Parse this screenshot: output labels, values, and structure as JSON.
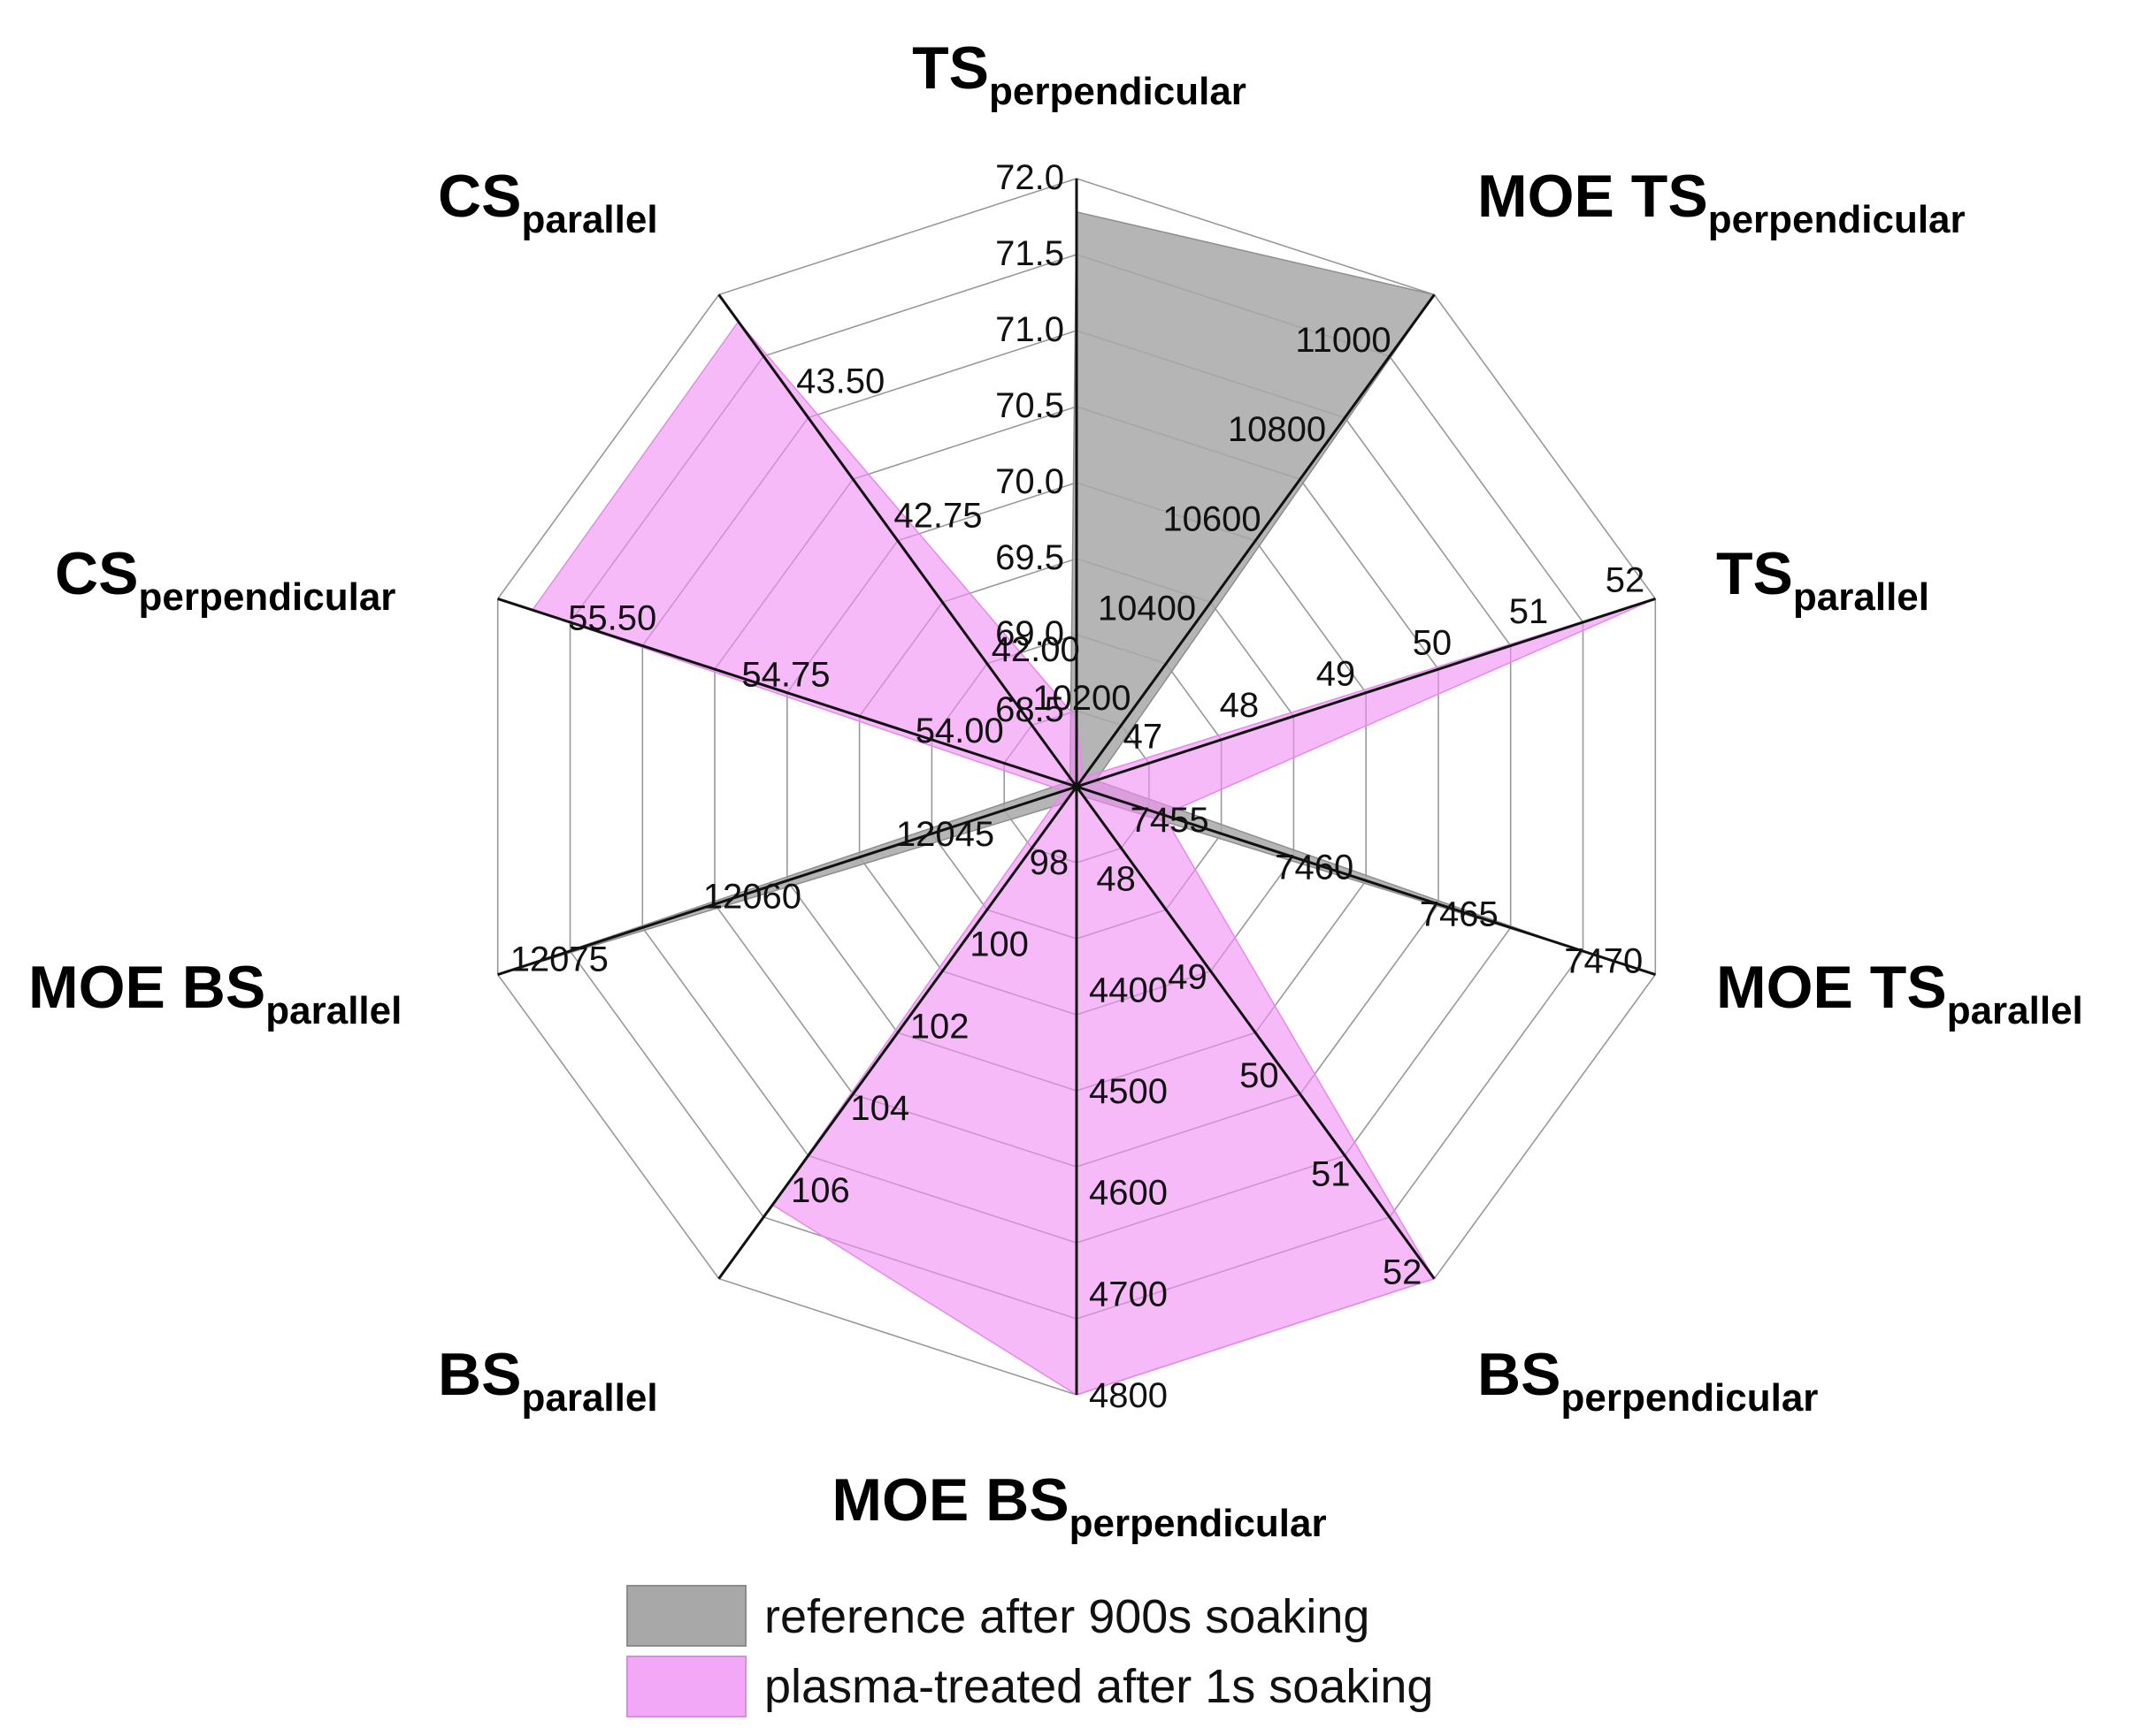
{
  "chart_data": {
    "type": "radar",
    "title": "",
    "rings": 8,
    "axes": [
      {
        "name": "TS",
        "sub": "perpendicular",
        "min": 68.0,
        "max": 72.0,
        "ticks": [
          "68.5",
          "69.0",
          "69.5",
          "70.0",
          "70.5",
          "71.0",
          "71.5",
          "72.0"
        ],
        "tick_values": [
          68.5,
          69.0,
          69.5,
          70.0,
          70.5,
          71.0,
          71.5,
          72.0
        ]
      },
      {
        "name": "MOE TS",
        "sub": "perpendicular",
        "min": 10000,
        "max": 11100,
        "ticks": [
          "10200",
          "10400",
          "10600",
          "10800",
          "11000"
        ],
        "tick_values": [
          10200,
          10400,
          10600,
          10800,
          11000
        ]
      },
      {
        "name": "TS",
        "sub": "parallel",
        "min": 46,
        "max": 52,
        "ticks": [
          "47",
          "48",
          "49",
          "50",
          "51",
          "52"
        ],
        "tick_values": [
          47,
          48,
          49,
          50,
          51,
          52
        ]
      },
      {
        "name": "MOE TS",
        "sub": "parallel",
        "min": 7450,
        "max": 7470,
        "ticks": [
          "7455",
          "7460",
          "7465",
          "7470"
        ],
        "tick_values": [
          7455,
          7460,
          7465,
          7470
        ]
      },
      {
        "name": "BS",
        "sub": "perpendicular",
        "min": 47,
        "max": 52,
        "ticks": [
          "48",
          "49",
          "50",
          "51",
          "52"
        ],
        "tick_values": [
          48,
          49,
          50,
          51,
          52
        ]
      },
      {
        "name": "MOE BS",
        "sub": "perpendicular",
        "min": 4200,
        "max": 4800,
        "ticks": [
          "4400",
          "4500",
          "4600",
          "4700",
          "4800"
        ],
        "tick_values": [
          4400,
          4500,
          4600,
          4700,
          4800
        ]
      },
      {
        "name": "BS",
        "sub": "parallel",
        "min": 96,
        "max": 108,
        "ticks": [
          "98",
          "100",
          "102",
          "104",
          "106"
        ],
        "tick_values": [
          98,
          100,
          102,
          104,
          106
        ]
      },
      {
        "name": "MOE BS",
        "sub": "parallel",
        "min": 12030,
        "max": 12075,
        "ticks": [
          "12045",
          "12060",
          "12075"
        ],
        "tick_values": [
          12045,
          12060,
          12075
        ]
      },
      {
        "name": "CS",
        "sub": "perpendicular",
        "min": 53.25,
        "max": 55.75,
        "ticks": [
          "54.00",
          "54.75",
          "55.50"
        ],
        "tick_values": [
          54.0,
          54.75,
          55.5
        ]
      },
      {
        "name": "CS",
        "sub": "parallel",
        "min": 41.25,
        "max": 44.0,
        "ticks": [
          "42.00",
          "42.75",
          "43.50"
        ],
        "tick_values": [
          42.0,
          42.75,
          43.5
        ]
      }
    ],
    "series": [
      {
        "name": "reference after 900s soaking",
        "color": "#a8a8a8",
        "values": [
          71.78,
          11100,
          46.2,
          7467,
          47.1,
          4200,
          96.4,
          12075,
          53.3,
          41.3
        ]
      },
      {
        "name": "plasma-treated after 1s soaking",
        "color": "#f090f5",
        "values": [
          68.45,
          10020,
          52,
          7453,
          52,
          4800,
          106.2,
          12031,
          55.6,
          43.85
        ]
      }
    ],
    "legend": [
      {
        "label": "reference after 900s soaking",
        "color": "#a8a8a8"
      },
      {
        "label": "plasma-treated after 1s soaking",
        "color": "#f090f5"
      }
    ],
    "legend_position": "bottom"
  }
}
